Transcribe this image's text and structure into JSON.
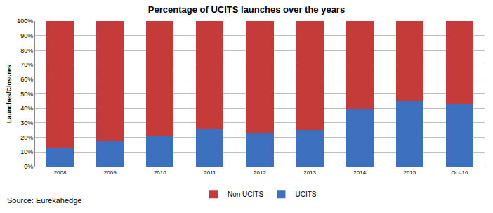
{
  "chart_data": {
    "type": "bar",
    "title": "Percentage of UCITS launches over the years",
    "y_label": "Launches/Closures",
    "annotations": [
      "Source: Eurekahedge"
    ],
    "categories": [
      "2008",
      "2009",
      "2010",
      "2011",
      "2012",
      "2013",
      "2014",
      "2015",
      "Oct-16"
    ],
    "series": [
      {
        "name": "UCITS",
        "color": "#3d70be",
        "values": [
          13,
          17.5,
          21,
          26,
          23,
          25,
          39.5,
          45,
          43
        ]
      },
      {
        "name": "Non UCITS",
        "color": "#c43b3a",
        "values": [
          87,
          82.5,
          79,
          74,
          77,
          75,
          60.5,
          55,
          57
        ]
      }
    ],
    "stacked": true,
    "ylim": [
      0,
      100
    ],
    "yticks": [
      {
        "value": 0,
        "label": "0%"
      },
      {
        "value": 10,
        "label": "10%"
      },
      {
        "value": 20,
        "label": "20%"
      },
      {
        "value": 30,
        "label": "30%"
      },
      {
        "value": 40,
        "label": "40%"
      },
      {
        "value": 50,
        "label": "50%"
      },
      {
        "value": 60,
        "label": "60%"
      },
      {
        "value": 70,
        "label": "70%"
      },
      {
        "value": 80,
        "label": "80%"
      },
      {
        "value": 90,
        "label": "90%"
      },
      {
        "value": 100,
        "label": "100%"
      }
    ],
    "grid": true,
    "legend": "bottom"
  }
}
